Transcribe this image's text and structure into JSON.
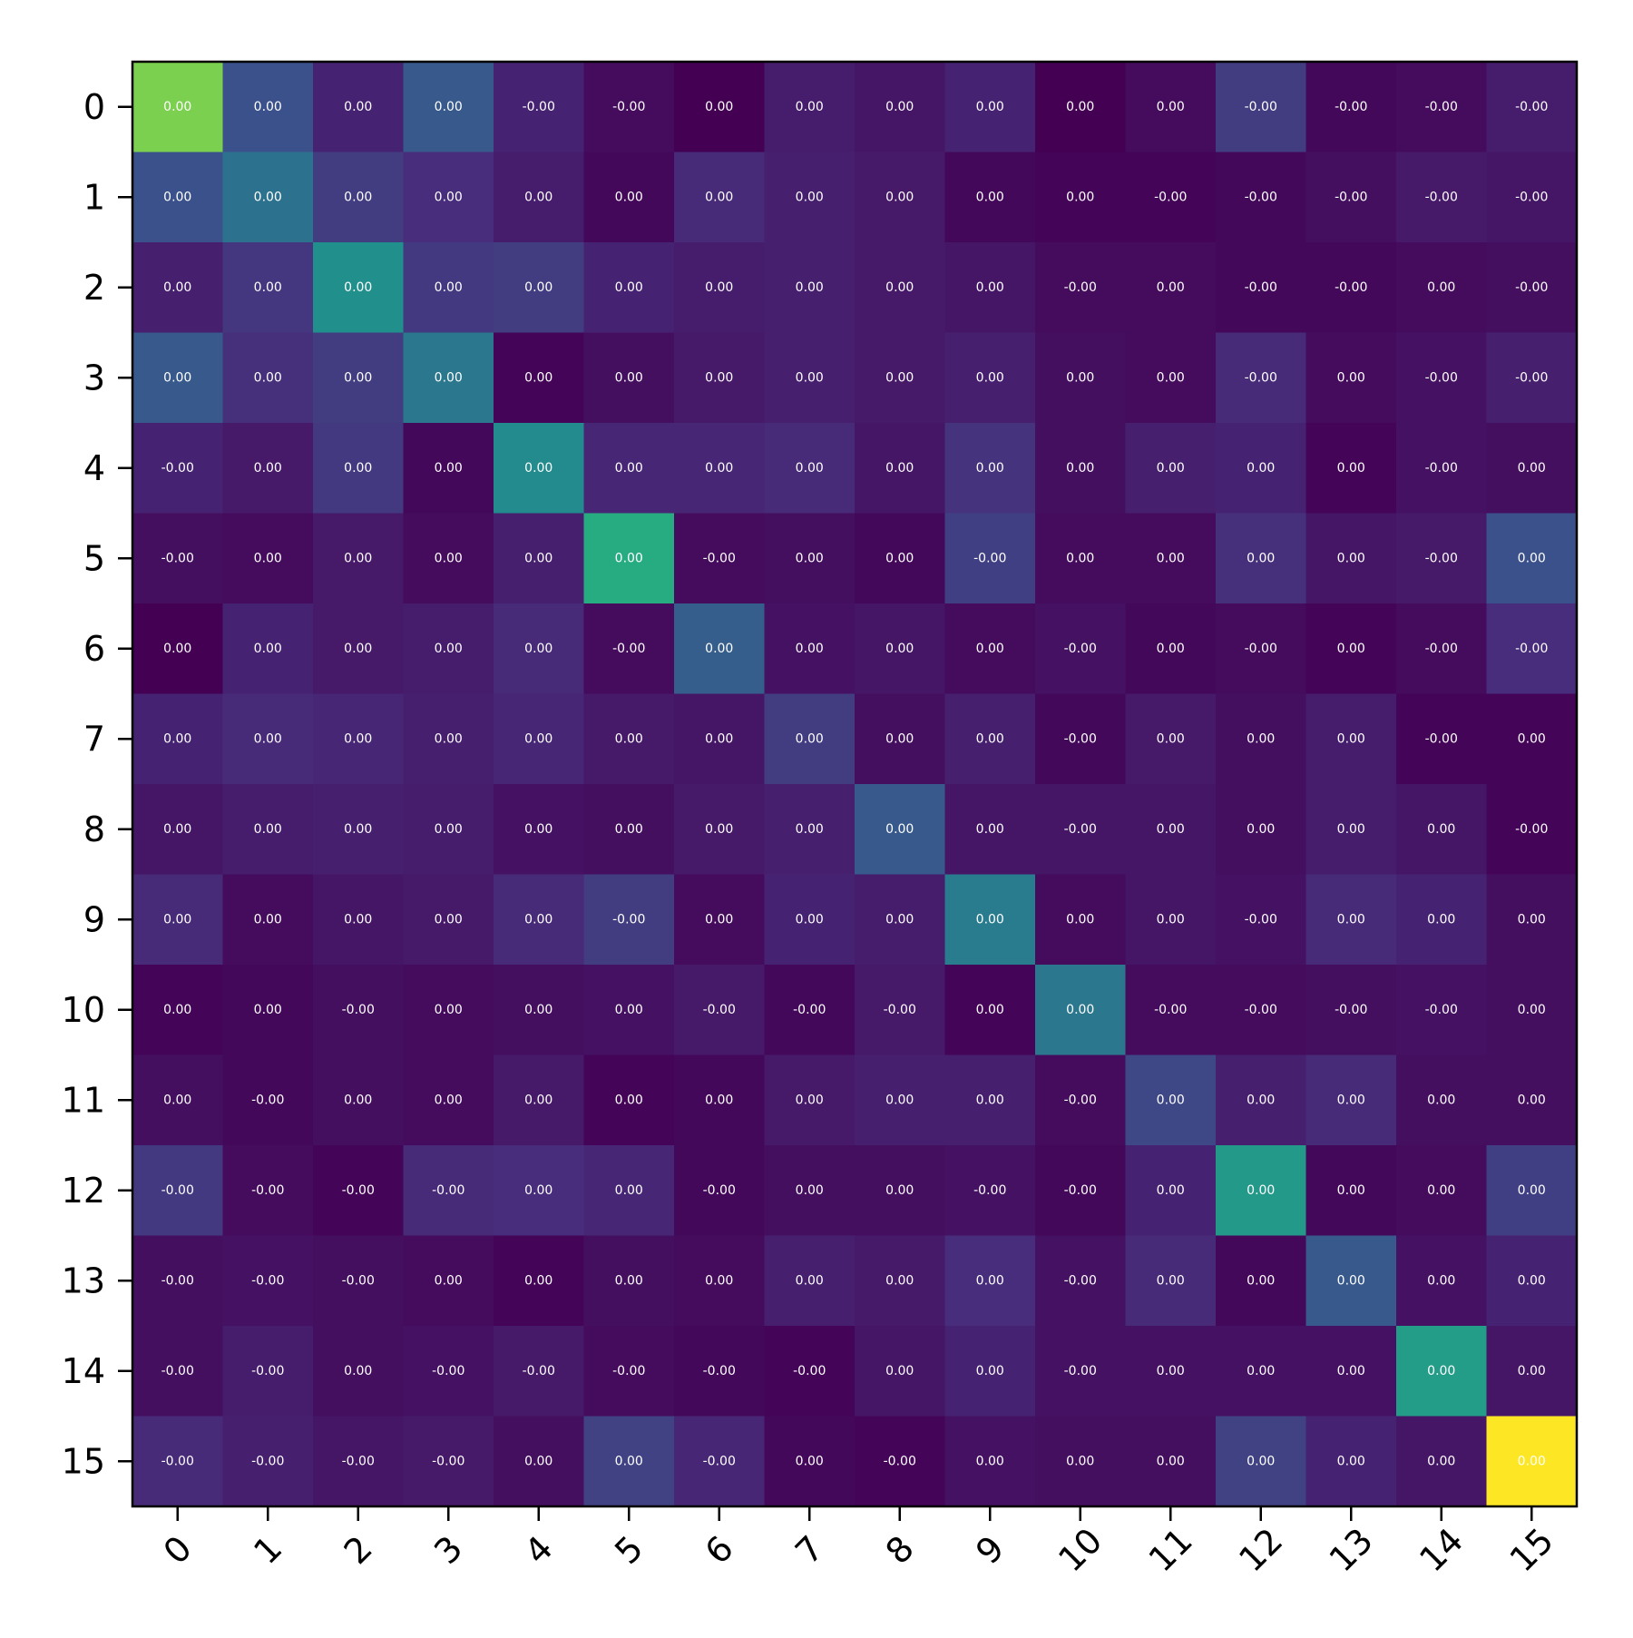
{
  "chart_data": {
    "type": "heatmap",
    "title": "",
    "xlabel": "",
    "ylabel": "",
    "colormap": "viridis",
    "value_range": [
      -0.02,
      1.0
    ],
    "x_categories": [
      "0",
      "1",
      "2",
      "3",
      "4",
      "5",
      "6",
      "7",
      "8",
      "9",
      "10",
      "11",
      "12",
      "13",
      "14",
      "15"
    ],
    "y_categories": [
      "0",
      "1",
      "2",
      "3",
      "4",
      "5",
      "6",
      "7",
      "8",
      "9",
      "10",
      "11",
      "12",
      "13",
      "14",
      "15"
    ],
    "intensity": [
      [
        0.8,
        0.25,
        0.1,
        0.28,
        0.1,
        0.03,
        0.0,
        0.08,
        0.06,
        0.1,
        0.0,
        0.03,
        0.18,
        0.02,
        0.03,
        0.08
      ],
      [
        0.25,
        0.38,
        0.18,
        0.13,
        0.08,
        0.02,
        0.12,
        0.09,
        0.07,
        0.02,
        0.01,
        0.01,
        0.02,
        0.04,
        0.07,
        0.06
      ],
      [
        0.09,
        0.16,
        0.5,
        0.17,
        0.18,
        0.1,
        0.08,
        0.09,
        0.07,
        0.06,
        0.03,
        0.03,
        0.02,
        0.02,
        0.03,
        0.04
      ],
      [
        0.28,
        0.14,
        0.18,
        0.4,
        0.01,
        0.04,
        0.07,
        0.09,
        0.07,
        0.09,
        0.04,
        0.03,
        0.12,
        0.03,
        0.05,
        0.09
      ],
      [
        0.1,
        0.07,
        0.17,
        0.02,
        0.48,
        0.11,
        0.11,
        0.12,
        0.06,
        0.15,
        0.04,
        0.09,
        0.1,
        0.01,
        0.05,
        0.04
      ],
      [
        0.04,
        0.03,
        0.07,
        0.03,
        0.09,
        0.62,
        0.03,
        0.04,
        0.02,
        0.19,
        0.03,
        0.03,
        0.14,
        0.06,
        0.07,
        0.25
      ],
      [
        0.0,
        0.1,
        0.07,
        0.08,
        0.12,
        0.03,
        0.3,
        0.05,
        0.06,
        0.03,
        0.05,
        0.02,
        0.03,
        0.01,
        0.03,
        0.13
      ],
      [
        0.1,
        0.12,
        0.11,
        0.09,
        0.11,
        0.07,
        0.06,
        0.18,
        0.04,
        0.09,
        0.02,
        0.07,
        0.04,
        0.08,
        0.01,
        0.01
      ],
      [
        0.06,
        0.08,
        0.09,
        0.08,
        0.05,
        0.04,
        0.07,
        0.09,
        0.28,
        0.06,
        0.06,
        0.06,
        0.04,
        0.08,
        0.06,
        0.01
      ],
      [
        0.12,
        0.03,
        0.06,
        0.07,
        0.12,
        0.18,
        0.03,
        0.1,
        0.08,
        0.42,
        0.03,
        0.06,
        0.05,
        0.12,
        0.1,
        0.04
      ],
      [
        0.01,
        0.02,
        0.04,
        0.03,
        0.04,
        0.05,
        0.07,
        0.02,
        0.07,
        0.01,
        0.4,
        0.03,
        0.03,
        0.04,
        0.05,
        0.04
      ],
      [
        0.04,
        0.02,
        0.04,
        0.03,
        0.07,
        0.01,
        0.02,
        0.07,
        0.09,
        0.09,
        0.03,
        0.22,
        0.09,
        0.12,
        0.04,
        0.04
      ],
      [
        0.17,
        0.03,
        0.01,
        0.12,
        0.13,
        0.11,
        0.02,
        0.04,
        0.04,
        0.05,
        0.02,
        0.1,
        0.54,
        0.02,
        0.03,
        0.19
      ],
      [
        0.04,
        0.05,
        0.04,
        0.03,
        0.01,
        0.04,
        0.03,
        0.09,
        0.07,
        0.13,
        0.05,
        0.12,
        0.02,
        0.28,
        0.05,
        0.1
      ],
      [
        0.04,
        0.08,
        0.04,
        0.05,
        0.07,
        0.03,
        0.02,
        0.01,
        0.06,
        0.1,
        0.05,
        0.05,
        0.05,
        0.05,
        0.55,
        0.06
      ],
      [
        0.12,
        0.09,
        0.06,
        0.07,
        0.04,
        0.2,
        0.11,
        0.02,
        0.01,
        0.05,
        0.04,
        0.04,
        0.2,
        0.1,
        0.06,
        1.0
      ]
    ],
    "labels": [
      [
        "0.00",
        "0.00",
        "0.00",
        "0.00",
        "-0.00",
        "-0.00",
        "0.00",
        "0.00",
        "0.00",
        "0.00",
        "0.00",
        "0.00",
        "-0.00",
        "-0.00",
        "-0.00",
        "-0.00"
      ],
      [
        "0.00",
        "0.00",
        "0.00",
        "0.00",
        "0.00",
        "0.00",
        "0.00",
        "0.00",
        "0.00",
        "0.00",
        "0.00",
        "-0.00",
        "-0.00",
        "-0.00",
        "-0.00",
        "-0.00"
      ],
      [
        "0.00",
        "0.00",
        "0.00",
        "0.00",
        "0.00",
        "0.00",
        "0.00",
        "0.00",
        "0.00",
        "0.00",
        "-0.00",
        "0.00",
        "-0.00",
        "-0.00",
        "0.00",
        "-0.00"
      ],
      [
        "0.00",
        "0.00",
        "0.00",
        "0.00",
        "0.00",
        "0.00",
        "0.00",
        "0.00",
        "0.00",
        "0.00",
        "0.00",
        "0.00",
        "-0.00",
        "0.00",
        "-0.00",
        "-0.00"
      ],
      [
        "-0.00",
        "0.00",
        "0.00",
        "0.00",
        "0.00",
        "0.00",
        "0.00",
        "0.00",
        "0.00",
        "0.00",
        "0.00",
        "0.00",
        "0.00",
        "0.00",
        "-0.00",
        "0.00"
      ],
      [
        "-0.00",
        "0.00",
        "0.00",
        "0.00",
        "0.00",
        "0.00",
        "-0.00",
        "0.00",
        "0.00",
        "-0.00",
        "0.00",
        "0.00",
        "0.00",
        "0.00",
        "-0.00",
        "0.00"
      ],
      [
        "0.00",
        "0.00",
        "0.00",
        "0.00",
        "0.00",
        "-0.00",
        "0.00",
        "0.00",
        "0.00",
        "0.00",
        "-0.00",
        "0.00",
        "-0.00",
        "0.00",
        "-0.00",
        "-0.00"
      ],
      [
        "0.00",
        "0.00",
        "0.00",
        "0.00",
        "0.00",
        "0.00",
        "0.00",
        "0.00",
        "0.00",
        "0.00",
        "-0.00",
        "0.00",
        "0.00",
        "0.00",
        "-0.00",
        "0.00"
      ],
      [
        "0.00",
        "0.00",
        "0.00",
        "0.00",
        "0.00",
        "0.00",
        "0.00",
        "0.00",
        "0.00",
        "0.00",
        "-0.00",
        "0.00",
        "0.00",
        "0.00",
        "0.00",
        "-0.00"
      ],
      [
        "0.00",
        "0.00",
        "0.00",
        "0.00",
        "0.00",
        "-0.00",
        "0.00",
        "0.00",
        "0.00",
        "0.00",
        "0.00",
        "0.00",
        "-0.00",
        "0.00",
        "0.00",
        "0.00"
      ],
      [
        "0.00",
        "0.00",
        "-0.00",
        "0.00",
        "0.00",
        "0.00",
        "-0.00",
        "-0.00",
        "-0.00",
        "0.00",
        "0.00",
        "-0.00",
        "-0.00",
        "-0.00",
        "-0.00",
        "0.00"
      ],
      [
        "0.00",
        "-0.00",
        "0.00",
        "0.00",
        "0.00",
        "0.00",
        "0.00",
        "0.00",
        "0.00",
        "0.00",
        "-0.00",
        "0.00",
        "0.00",
        "0.00",
        "0.00",
        "0.00"
      ],
      [
        "-0.00",
        "-0.00",
        "-0.00",
        "-0.00",
        "0.00",
        "0.00",
        "-0.00",
        "0.00",
        "0.00",
        "-0.00",
        "-0.00",
        "0.00",
        "0.00",
        "0.00",
        "0.00",
        "0.00"
      ],
      [
        "-0.00",
        "-0.00",
        "-0.00",
        "0.00",
        "0.00",
        "0.00",
        "0.00",
        "0.00",
        "0.00",
        "0.00",
        "-0.00",
        "0.00",
        "0.00",
        "0.00",
        "0.00",
        "0.00"
      ],
      [
        "-0.00",
        "-0.00",
        "0.00",
        "-0.00",
        "-0.00",
        "-0.00",
        "-0.00",
        "-0.00",
        "0.00",
        "0.00",
        "-0.00",
        "0.00",
        "0.00",
        "0.00",
        "0.00",
        "0.00"
      ],
      [
        "-0.00",
        "-0.00",
        "-0.00",
        "-0.00",
        "0.00",
        "0.00",
        "-0.00",
        "0.00",
        "-0.00",
        "0.00",
        "0.00",
        "0.00",
        "0.00",
        "0.00",
        "0.00",
        "0.00"
      ]
    ],
    "x_tick_rotation": 45,
    "grid": false,
    "colorbar": false,
    "colors": {
      "axis": "#000000",
      "cell_label": "#ffffff",
      "background": "#ffffff"
    }
  }
}
